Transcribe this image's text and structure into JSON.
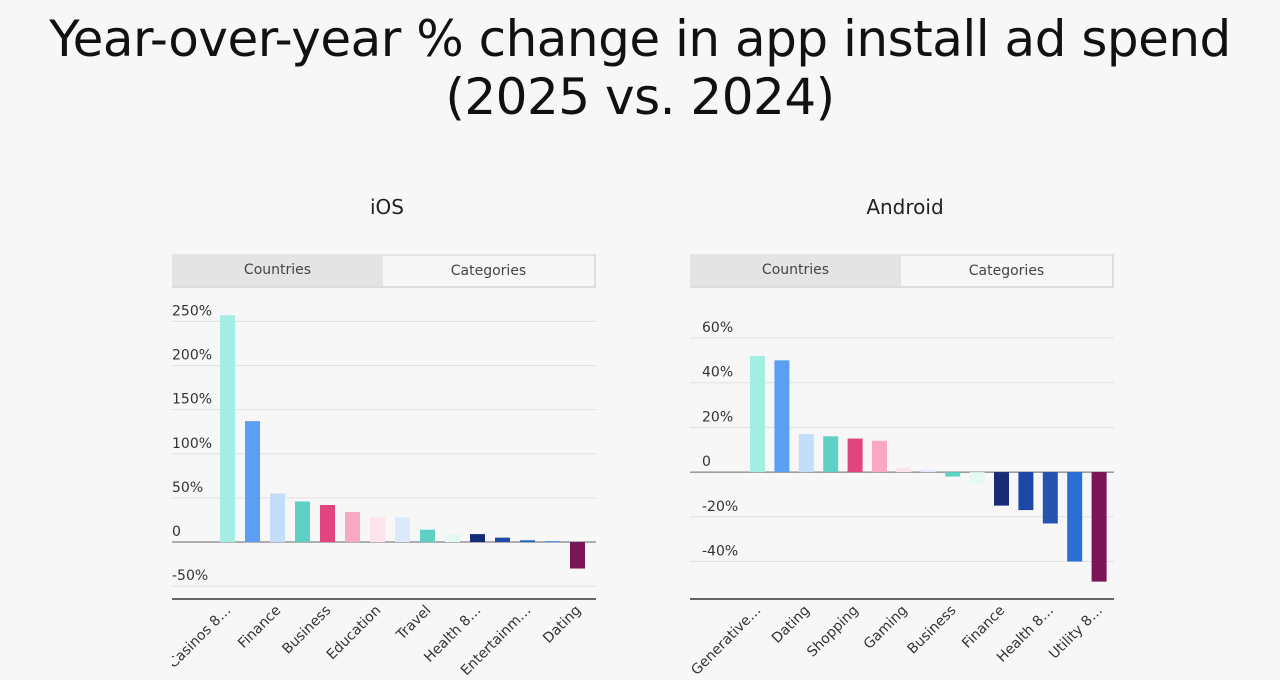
{
  "title": "Year-over-year % change in app install ad spend (2025 vs. 2024)",
  "tabs": [
    "Countries",
    "Categories"
  ],
  "active_tab": "Categories",
  "chart_data": [
    {
      "type": "bar",
      "title": "iOS",
      "ylim": [
        -60,
        255
      ],
      "yticks": [
        -50,
        0,
        50,
        100,
        150,
        200,
        250
      ],
      "ytick_labels": [
        "-50%",
        "0",
        "50%",
        "100%",
        "150%",
        "200%",
        "250%"
      ],
      "labeled_every": 2,
      "categories": [
        "Casinos &...",
        "",
        "Finance",
        "",
        "Business",
        "",
        "Education",
        "",
        "Travel",
        "",
        "Health &...",
        "",
        "Entertainm...",
        "",
        "Dating"
      ],
      "tick_labels": [
        "Casinos 8…",
        "Finance",
        "Business",
        "Education",
        "Travel",
        "Health 8…",
        "Entertainm…",
        "Dating"
      ],
      "values": [
        257,
        137,
        55,
        46,
        42,
        34,
        28,
        28,
        14,
        9,
        9,
        5,
        2,
        1,
        -30
      ],
      "colors": [
        "#a4eee4",
        "#5c9ef2",
        "#c4ddfa",
        "#5fd0c4",
        "#e0457f",
        "#f8a8c4",
        "#fbe4ec",
        "#dce9fb",
        "#5fd0c4",
        "#e6f8f4",
        "#172c78",
        "#1f47a8",
        "#2862c8",
        "#3d7ee0",
        "#7a1558"
      ]
    },
    {
      "type": "bar",
      "title": "Android",
      "ylim": [
        -55,
        60
      ],
      "yticks": [
        -40,
        -20,
        0,
        20,
        40,
        60
      ],
      "ytick_labels": [
        "-40%",
        "-20%",
        "0",
        "20%",
        "40%",
        "60%"
      ],
      "labeled_every": 2,
      "categories": [
        "Generative...",
        "",
        "Dating",
        "",
        "Shopping",
        "",
        "Gaming",
        "",
        "Business",
        "",
        "Finance",
        "",
        "Health &...",
        "",
        "Utility &..."
      ],
      "tick_labels": [
        "Generative…",
        "Dating",
        "Shopping",
        "Gaming",
        "Business",
        "Finance",
        "Health 8…",
        "Utility 8…"
      ],
      "values": [
        52,
        50,
        17,
        16,
        15,
        14,
        2,
        1,
        -2,
        -5,
        -15,
        -17,
        -23,
        -40,
        -49
      ],
      "colors": [
        "#a4eee4",
        "#5c9ef2",
        "#c4ddfa",
        "#5fd0c4",
        "#e0457f",
        "#f8a8c4",
        "#fbe4ec",
        "#e0ebfb",
        "#5fd0c4",
        "#e6f8f4",
        "#172c78",
        "#1f47a8",
        "#2453b0",
        "#2c6fd4",
        "#7a1558"
      ]
    }
  ]
}
